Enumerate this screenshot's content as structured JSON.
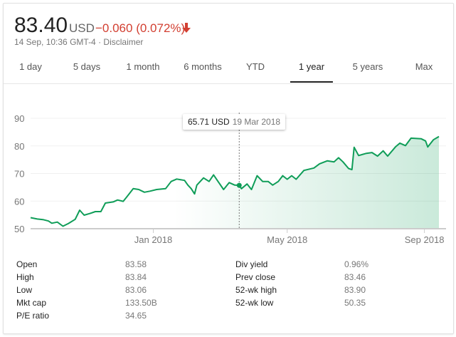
{
  "header": {
    "price": "83.40",
    "currency": "USD",
    "change": "−0.060 (0.072%)",
    "change_icon": "arrow-down-icon",
    "timestamp": "14 Sep, 10:36 GMT-4 · ",
    "disclaimer": "Disclaimer"
  },
  "tabs": [
    {
      "label": "1 day"
    },
    {
      "label": "5 days"
    },
    {
      "label": "1 month"
    },
    {
      "label": "6 months"
    },
    {
      "label": "YTD"
    },
    {
      "label": "1 year",
      "active": true
    },
    {
      "label": "5 years"
    },
    {
      "label": "Max"
    }
  ],
  "tooltip": {
    "value": "65.71 USD",
    "date": "19 Mar 2018"
  },
  "stats": {
    "left": [
      {
        "label": "Open",
        "value": "83.58"
      },
      {
        "label": "High",
        "value": "83.84"
      },
      {
        "label": "Low",
        "value": "83.06"
      },
      {
        "label": "Mkt cap",
        "value": "133.50B"
      },
      {
        "label": "P/E ratio",
        "value": "34.65"
      }
    ],
    "right": [
      {
        "label": "Div yield",
        "value": "0.96%"
      },
      {
        "label": "Prev close",
        "value": "83.46"
      },
      {
        "label": "52-wk high",
        "value": "83.90"
      },
      {
        "label": "52-wk low",
        "value": "50.35"
      }
    ]
  },
  "colors": {
    "line": "#0f9d58",
    "negative": "#d23f31"
  },
  "chart_data": {
    "type": "area",
    "ylim": [
      50,
      90
    ],
    "xlim": [
      "2017-09-13",
      "2018-09-14"
    ],
    "yticks": [
      "50",
      "60",
      "70",
      "80",
      "90"
    ],
    "xticks": [
      {
        "date": "2018-01-01",
        "label": "Jan 2018"
      },
      {
        "date": "2018-05-01",
        "label": "May 2018"
      },
      {
        "date": "2018-09-01",
        "label": "Sep 2018"
      }
    ],
    "grid": true,
    "highlight": {
      "date": "2018-03-19",
      "value": 65.71
    },
    "points": [
      [
        "2017-09-13",
        54.0
      ],
      [
        "2017-09-19",
        53.5
      ],
      [
        "2017-09-24",
        53.3
      ],
      [
        "2017-09-29",
        52.8
      ],
      [
        "2017-10-02",
        52.0
      ],
      [
        "2017-10-07",
        52.4
      ],
      [
        "2017-10-12",
        50.9
      ],
      [
        "2017-10-17",
        51.9
      ],
      [
        "2017-10-23",
        53.4
      ],
      [
        "2017-10-27",
        56.7
      ],
      [
        "2017-10-31",
        54.9
      ],
      [
        "2017-11-05",
        55.5
      ],
      [
        "2017-11-10",
        56.2
      ],
      [
        "2017-11-15",
        56.2
      ],
      [
        "2017-11-19",
        59.3
      ],
      [
        "2017-11-26",
        59.7
      ],
      [
        "2017-11-30",
        60.4
      ],
      [
        "2017-12-05",
        59.9
      ],
      [
        "2017-12-09",
        61.9
      ],
      [
        "2017-12-14",
        64.5
      ],
      [
        "2017-12-19",
        64.2
      ],
      [
        "2017-12-24",
        63.2
      ],
      [
        "2017-12-29",
        63.6
      ],
      [
        "2018-01-04",
        64.2
      ],
      [
        "2018-01-12",
        64.5
      ],
      [
        "2018-01-17",
        67.1
      ],
      [
        "2018-01-22",
        68.0
      ],
      [
        "2018-01-29",
        67.5
      ],
      [
        "2018-02-01",
        65.8
      ],
      [
        "2018-02-04",
        64.5
      ],
      [
        "2018-02-07",
        62.6
      ],
      [
        "2018-02-09",
        65.8
      ],
      [
        "2018-02-15",
        68.4
      ],
      [
        "2018-02-20",
        67.1
      ],
      [
        "2018-02-24",
        69.5
      ],
      [
        "2018-02-28",
        67.1
      ],
      [
        "2018-03-05",
        64.2
      ],
      [
        "2018-03-10",
        66.7
      ],
      [
        "2018-03-15",
        65.8
      ],
      [
        "2018-03-19",
        65.71
      ],
      [
        "2018-03-21",
        64.5
      ],
      [
        "2018-03-26",
        66.2
      ],
      [
        "2018-03-30",
        64.2
      ],
      [
        "2018-04-04",
        69.2
      ],
      [
        "2018-04-09",
        67.1
      ],
      [
        "2018-04-14",
        67.1
      ],
      [
        "2018-04-18",
        65.8
      ],
      [
        "2018-04-23",
        67.1
      ],
      [
        "2018-04-27",
        69.2
      ],
      [
        "2018-05-01",
        67.9
      ],
      [
        "2018-05-05",
        69.2
      ],
      [
        "2018-05-09",
        67.9
      ],
      [
        "2018-05-16",
        71.1
      ],
      [
        "2018-05-25",
        72.0
      ],
      [
        "2018-05-30",
        73.5
      ],
      [
        "2018-06-06",
        74.6
      ],
      [
        "2018-06-12",
        74.2
      ],
      [
        "2018-06-16",
        75.7
      ],
      [
        "2018-06-20",
        74.2
      ],
      [
        "2018-06-25",
        71.8
      ],
      [
        "2018-06-28",
        71.4
      ],
      [
        "2018-06-30",
        79.5
      ],
      [
        "2018-07-04",
        76.5
      ],
      [
        "2018-07-11",
        77.3
      ],
      [
        "2018-07-16",
        77.6
      ],
      [
        "2018-07-21",
        76.3
      ],
      [
        "2018-07-26",
        78.2
      ],
      [
        "2018-07-30",
        76.3
      ],
      [
        "2018-08-06",
        79.6
      ],
      [
        "2018-08-10",
        81.0
      ],
      [
        "2018-08-15",
        80.1
      ],
      [
        "2018-08-20",
        82.8
      ],
      [
        "2018-08-29",
        82.6
      ],
      [
        "2018-09-02",
        81.8
      ],
      [
        "2018-09-04",
        79.6
      ],
      [
        "2018-09-09",
        82.2
      ],
      [
        "2018-09-14",
        83.4
      ]
    ]
  }
}
